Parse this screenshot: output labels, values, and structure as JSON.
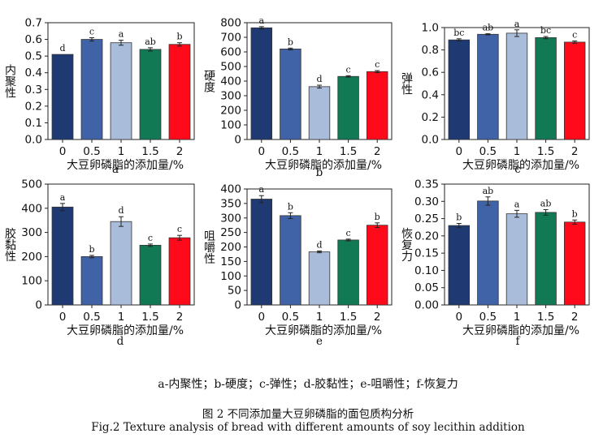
{
  "colors": [
    "#1f3a73",
    "#3f63a6",
    "#a9bcd9",
    "#117a55",
    "#ff0a1a"
  ],
  "chart_data": [
    {
      "type": "bar",
      "panel": "a",
      "categories": [
        "0",
        "0.5",
        "1",
        "1.5",
        "2"
      ],
      "values": [
        0.51,
        0.6,
        0.58,
        0.54,
        0.57
      ],
      "errors": [
        0.0,
        0.01,
        0.015,
        0.01,
        0.01
      ],
      "letters": [
        "d",
        "c",
        "a",
        "ab",
        "b"
      ],
      "ylabel": "内聚性",
      "xlabel": "大豆卵磷脂的添加量/%",
      "ylim": [
        0.0,
        0.7
      ],
      "yticks": [
        "0.0",
        "0.1",
        "0.2",
        "0.3",
        "0.4",
        "0.5",
        "0.6",
        "0.7"
      ]
    },
    {
      "type": "bar",
      "panel": "b",
      "categories": [
        "0",
        "0.5",
        "1",
        "1.5",
        "2"
      ],
      "values": [
        765,
        620,
        362,
        432,
        465
      ],
      "errors": [
        8,
        6,
        10,
        5,
        7
      ],
      "letters": [
        "a",
        "b",
        "d",
        "c",
        "c"
      ],
      "ylabel": "硬度",
      "xlabel": "大豆卵磷脂的添加量/%",
      "ylim": [
        0,
        800
      ],
      "yticks": [
        "0",
        "100",
        "200",
        "300",
        "400",
        "500",
        "600",
        "700",
        "800"
      ]
    },
    {
      "type": "bar",
      "panel": "c",
      "categories": [
        "0",
        "0.5",
        "1",
        "1.5",
        "2"
      ],
      "values": [
        0.89,
        0.94,
        0.95,
        0.91,
        0.87
      ],
      "errors": [
        0.01,
        0.005,
        0.03,
        0.01,
        0.01
      ],
      "letters": [
        "bc",
        "ab",
        "a",
        "bc",
        "c"
      ],
      "ylabel": "弹性",
      "xlabel": "大豆卵磷脂的添加量/%",
      "ylim": [
        0.0,
        1.0
      ],
      "yticks": [
        "0.0",
        "0.2",
        "0.4",
        "0.6",
        "0.8",
        "1.0"
      ]
    },
    {
      "type": "bar",
      "panel": "d",
      "categories": [
        "0",
        "0.5",
        "1",
        "1.5",
        "2"
      ],
      "values": [
        405,
        200,
        345,
        247,
        278
      ],
      "errors": [
        15,
        5,
        20,
        5,
        10
      ],
      "letters": [
        "a",
        "b",
        "d",
        "c",
        "c"
      ],
      "ylabel": "胶黏性",
      "xlabel": "大豆卵磷脂的添加量/%",
      "ylim": [
        0,
        500
      ],
      "yticks": [
        "0",
        "100",
        "200",
        "300",
        "400",
        "500"
      ]
    },
    {
      "type": "bar",
      "panel": "e",
      "categories": [
        "0",
        "0.5",
        "1",
        "1.5",
        "2"
      ],
      "values": [
        365,
        308,
        183,
        224,
        275
      ],
      "errors": [
        12,
        10,
        3,
        3,
        8
      ],
      "letters": [
        "a",
        "b",
        "d",
        "c",
        "b"
      ],
      "ylabel": "咀嚼性",
      "xlabel": "大豆卵磷脂的添加量/%",
      "ylim": [
        0,
        400
      ],
      "yticks": [
        "0",
        "50",
        "100",
        "150",
        "200",
        "250",
        "300",
        "350",
        "400"
      ]
    },
    {
      "type": "bar",
      "panel": "f",
      "categories": [
        "0",
        "0.5",
        "1",
        "1.5",
        "2"
      ],
      "values": [
        0.23,
        0.301,
        0.264,
        0.268,
        0.24
      ],
      "errors": [
        0.006,
        0.012,
        0.01,
        0.008,
        0.006
      ],
      "letters": [
        "b",
        "ab",
        "a",
        "ab",
        "b"
      ],
      "ylabel": "恢复力",
      "xlabel": "大豆卵磷脂的添加量/%",
      "ylim": [
        0.0,
        0.35
      ],
      "yticks": [
        "0.00",
        "0.05",
        "0.10",
        "0.15",
        "0.20",
        "0.25",
        "0.30",
        "0.35"
      ]
    }
  ],
  "legend_line": "a-内聚性；b-硬度；c-弹性；d-胶黏性；e-咀嚼性；f-恢复力",
  "figure_title_cn": "图 2  不同添加量大豆卵磷脂的面包质构分析",
  "figure_title_en": "Fig.2 Texture analysis of bread with different amounts of soy lecithin addition"
}
